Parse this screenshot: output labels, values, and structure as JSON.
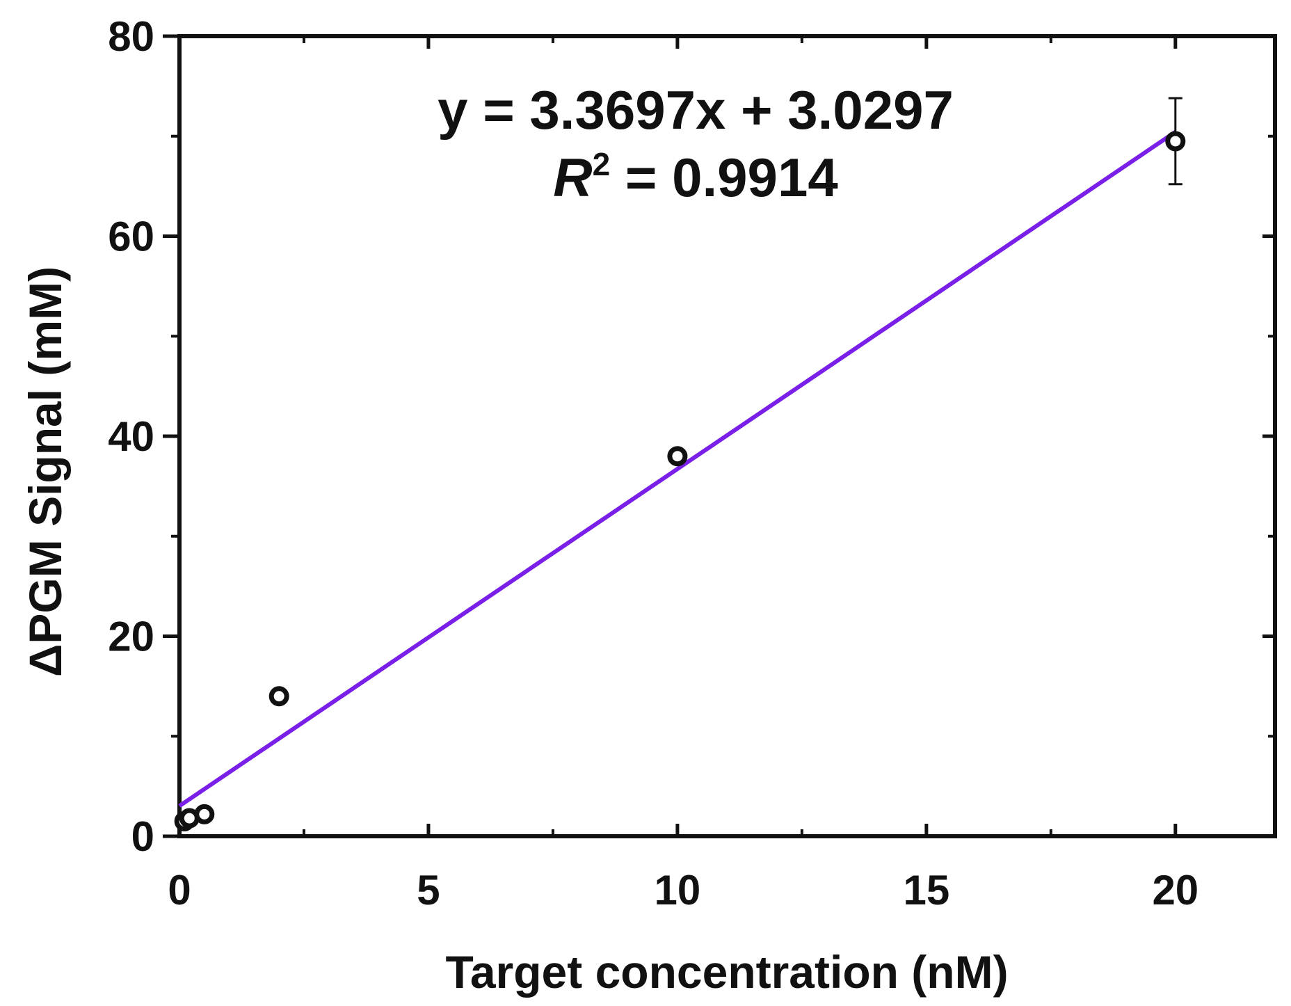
{
  "chart_data": {
    "type": "scatter",
    "xlabel": "Target concentration (nM)",
    "ylabel": "ΔPGM Signal (mM)",
    "xlim": [
      0,
      22
    ],
    "ylim": [
      0,
      80
    ],
    "x_ticks": [
      0,
      5,
      10,
      15,
      20
    ],
    "x_tick_labels": [
      "0",
      "5",
      "10",
      "15",
      "20"
    ],
    "y_ticks": [
      0,
      20,
      40,
      60,
      80
    ],
    "y_tick_labels": [
      "0",
      "20",
      "40",
      "60",
      "80"
    ],
    "x_minor_ticks": [
      2.5,
      7.5,
      12.5,
      17.5
    ],
    "y_minor_ticks": [
      10,
      30,
      50,
      70
    ],
    "series": [
      {
        "x": [
          0.1,
          0.2,
          0.5,
          2,
          10,
          20
        ],
        "y": [
          1.5,
          1.8,
          2.2,
          14,
          38,
          69.5
        ],
        "y_error": [
          0.3,
          0.3,
          0.5,
          0.5,
          0.5,
          4.3
        ],
        "color": "#111111"
      }
    ],
    "fit": {
      "slope": 3.3697,
      "intercept": 3.0297,
      "x_range": [
        0,
        20
      ],
      "color": "#7a1fe8"
    },
    "annotations": {
      "equation": "y = 3.3697x + 3.0297",
      "r2_symbol": "R",
      "r2_superscript": "2",
      "r2_value": " = 0.9914"
    },
    "grid": false
  }
}
